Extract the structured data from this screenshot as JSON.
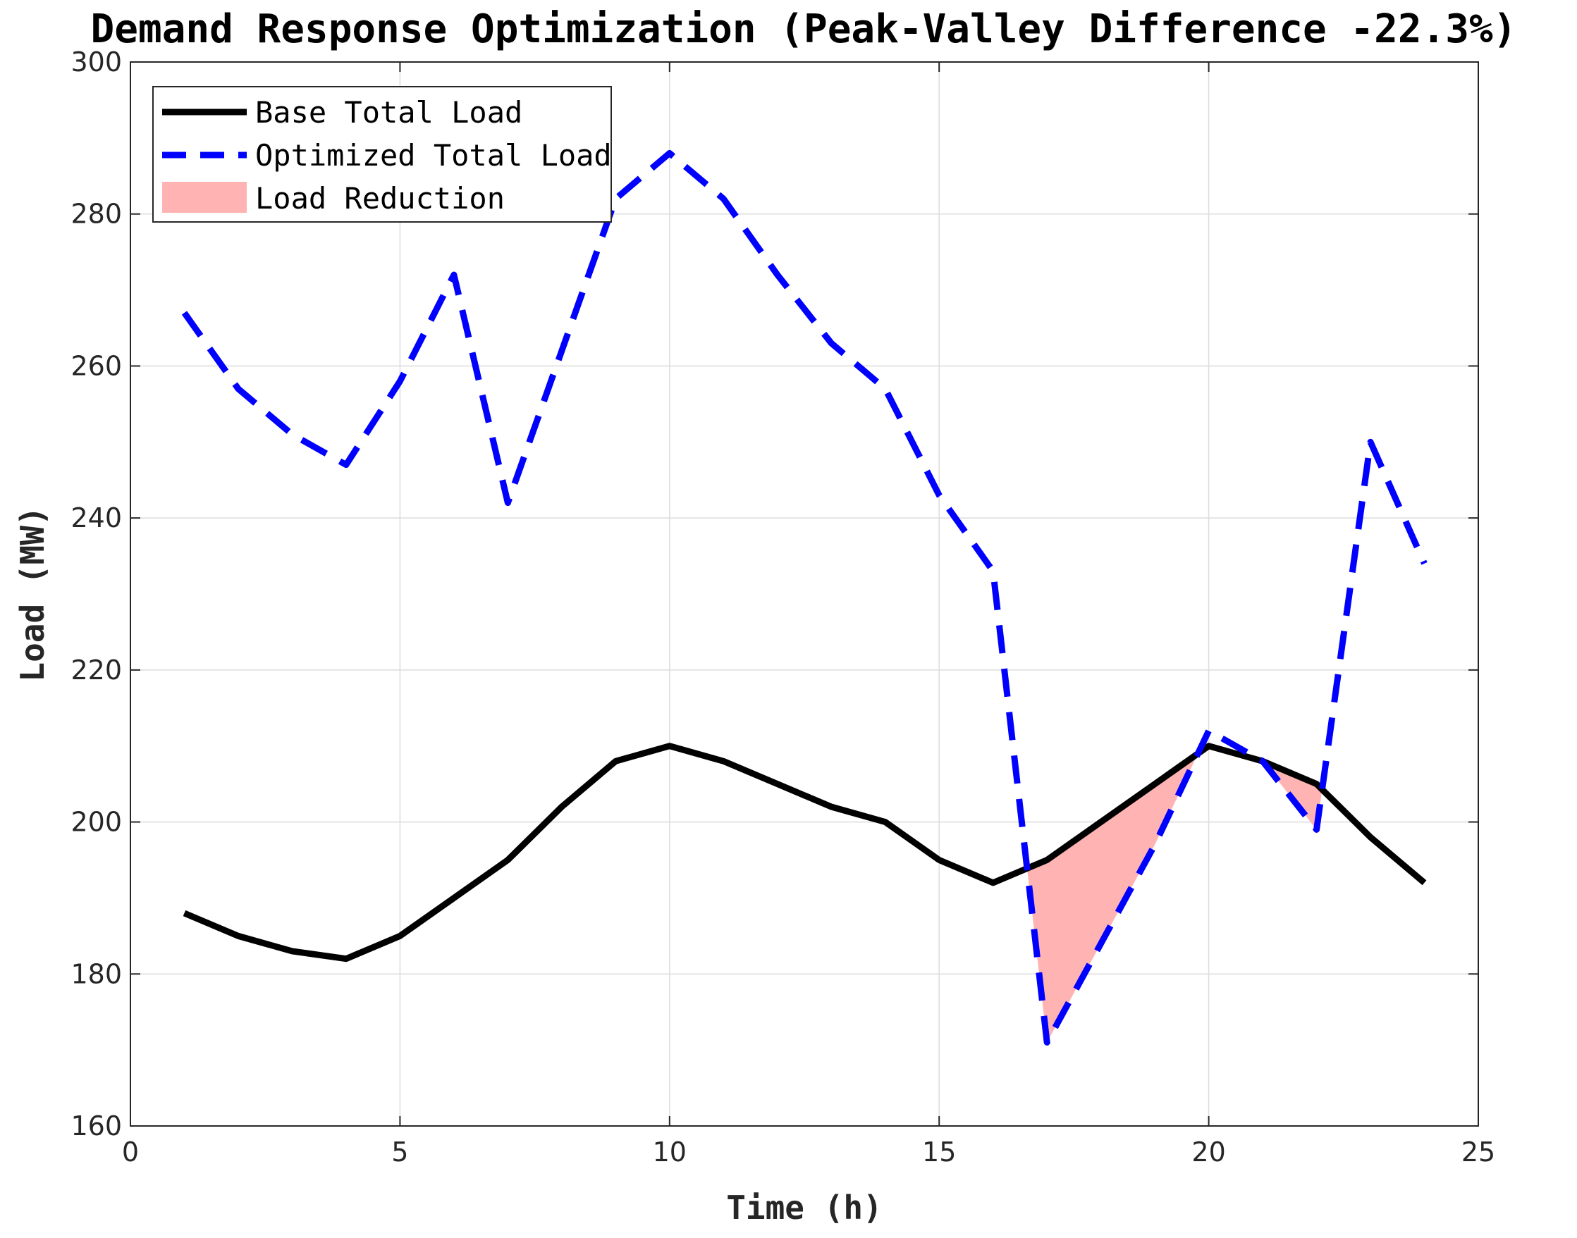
{
  "chart_data": {
    "type": "line",
    "title": "Demand Response Optimization (Peak-Valley Difference -22.3%)",
    "xlabel": "Time (h)",
    "ylabel": "Load (MW)",
    "xlim": [
      0,
      25
    ],
    "ylim": [
      160,
      300
    ],
    "xticks": [
      0,
      5,
      10,
      15,
      20,
      25
    ],
    "yticks": [
      160,
      180,
      200,
      220,
      240,
      260,
      280,
      300
    ],
    "grid": true,
    "legend_position": "top-left",
    "x": [
      1,
      2,
      3,
      4,
      5,
      6,
      7,
      8,
      9,
      10,
      11,
      12,
      13,
      14,
      15,
      16,
      17,
      18,
      19,
      20,
      21,
      22,
      23,
      24
    ],
    "series": [
      {
        "name": "Base Total Load",
        "style": "solid",
        "color": "#000000",
        "values": [
          188,
          185,
          183,
          182,
          185,
          190,
          195,
          202,
          208,
          210,
          208,
          205,
          202,
          200,
          195,
          192,
          195,
          200,
          205,
          210,
          208,
          205,
          198,
          192
        ]
      },
      {
        "name": "Optimized Total Load",
        "style": "dashed",
        "color": "#0000ff",
        "values": [
          267,
          257,
          251,
          247,
          258,
          272,
          242,
          262,
          282,
          288,
          282,
          272,
          263,
          257,
          243,
          233,
          171,
          184,
          197,
          212,
          208,
          199,
          250,
          234
        ]
      }
    ],
    "fill": {
      "name": "Load Reduction",
      "color": "#ffb3b3",
      "between": [
        "Base Total Load",
        "Optimized Total Load"
      ],
      "where": "optimized < base"
    }
  }
}
